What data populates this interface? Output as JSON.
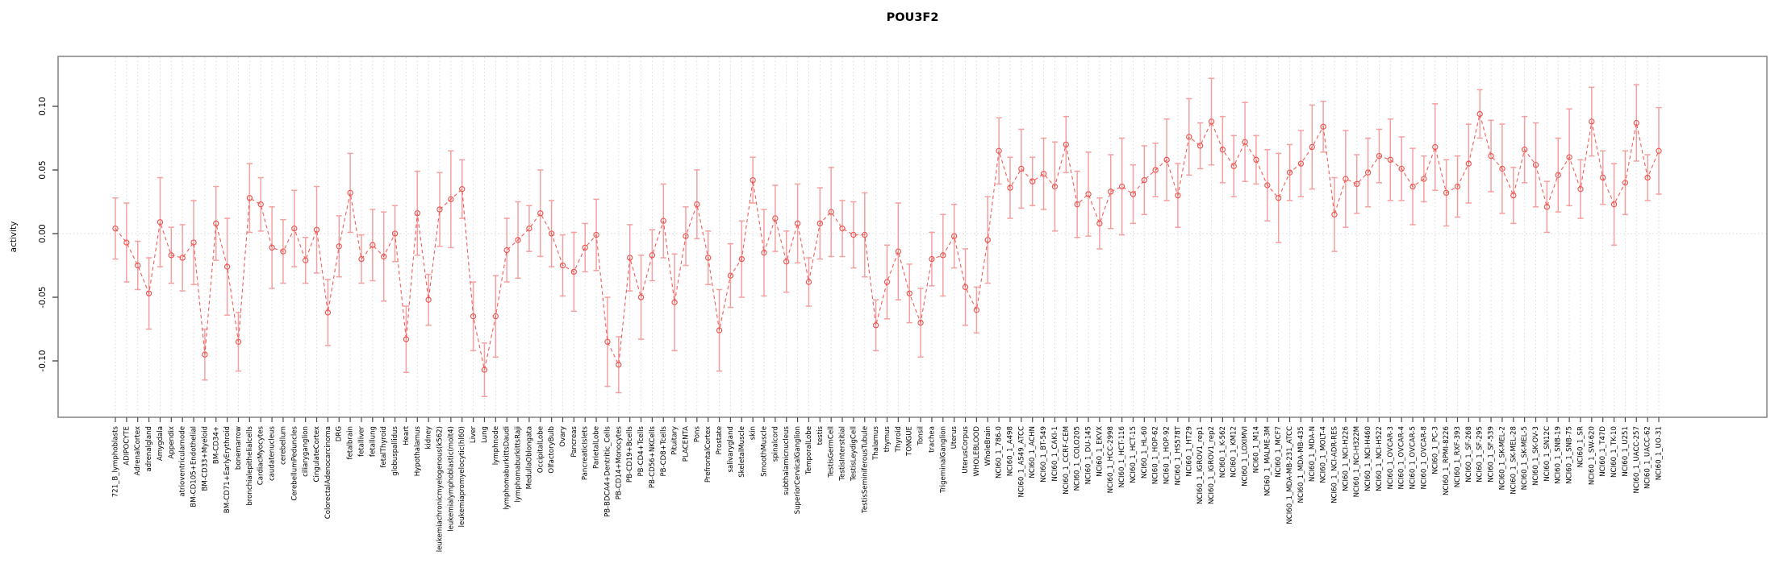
{
  "title": "POU3F2",
  "chart_data": {
    "type": "line",
    "title": "POU3F2",
    "xlabel": "",
    "ylabel": "activity",
    "ylim": [
      -0.144,
      0.139
    ],
    "yticks": [
      -0.1,
      -0.05,
      0.0,
      0.05,
      0.1
    ],
    "ytick_labels": [
      "-0.10",
      "-0.05",
      "0.00",
      "0.05",
      "0.10"
    ],
    "grid": "dotted vertical line per category, dotted horizontal line at y=0",
    "legend_position": "none",
    "marker": "open-circle",
    "error_bars": true,
    "colors": {
      "series": "#ee5450",
      "error_bar": "#f59b9b",
      "grid": "#d8d8d8",
      "frame": "#8a8a8a",
      "tick": "#4d4d4d",
      "text": "#000000"
    },
    "categories": [
      "721_B_lymphoblasts",
      "ADIPOCYTE",
      "AdrenalCortex",
      "adrenalgland",
      "Amygdala",
      "Appendix",
      "atrioventricularnode",
      "BM-CD105+Endothelial",
      "BM-CD33+Myeloid",
      "BM-CD34+",
      "BM-CD71+EarlyErythroid",
      "bonemarrow",
      "bronchialepithelialcells",
      "CardiacMyocytes",
      "caudatenucleus",
      "cerebellum",
      "CerebellumPeduncles",
      "ciliaryganglion",
      "CingulateCortex",
      "ColorectalAdenocarcinoma",
      "DRG",
      "fetalbrain",
      "fetalliver",
      "fetallung",
      "fetalThyroid",
      "globuspallidus",
      "Heart",
      "Hypothalamus",
      "kidney",
      "leukemiachronicmyelogenous(k562)",
      "leukemialymphoblastic(molt4)",
      "leukemiapromyelocytic(hl60)",
      "Liver",
      "Lung",
      "lymphnode",
      "lymphomaburkittsDaudi",
      "lymphomaburkittsRaji",
      "MedullaOblongata",
      "OccipitalLobe",
      "OlfactoryBulb",
      "Ovary",
      "Pancreas",
      "PancreaticIslets",
      "ParietalLobe",
      "PB-BDCA4+Dentritic_Cells",
      "PB-CD14+Monocytes",
      "PB-CD19+Bcells",
      "PB-CD4+Tcells",
      "PB-CD56+NKCells",
      "PB-CD8+Tcells",
      "Pituitary",
      "PLACENTA",
      "Pons",
      "PrefrontalCortex",
      "Prostate",
      "salivarygland",
      "SkeletalMuscle",
      "skin",
      "SmoothMuscle",
      "spinalcord",
      "subthalamicnucleus",
      "SuperiorCervicalGanglion",
      "TemporalLobe",
      "testis",
      "TestisGermCell",
      "TestisInterstitial",
      "TestisLeydigCell",
      "TestisSeminiferousTubule",
      "Thalamus",
      "thymus",
      "Thyroid",
      "TONGUE",
      "Tonsil",
      "trachea",
      "TrigeminalGanglion",
      "Uterus",
      "UterusCorpus",
      "WHOLEBLOOD",
      "WholeBrain",
      "NCI60_1_786-0",
      "NCI60_1_A498",
      "NCI60_1_A549_ATCC",
      "NCI60_1_ACHN",
      "NCI60_1_BT-549",
      "NCI60_1_CAKI-1",
      "NCI60_1_CCRF-CEM",
      "NCI60_1_COLO205",
      "NCI60_1_DU-145",
      "NCI60_1_EKVX",
      "NCI60_1_HCC-2998",
      "NCI60_1_HCT-116",
      "NCI60_1_HCT-15",
      "NCI60_1_HL-60",
      "NCI60_1_HOP-62",
      "NCI60_1_HOP-92",
      "NCI60_1_HS578T",
      "NCI60_1_HT29",
      "NCI60_1_IGROV1_rep1",
      "NCI60_1_IGROV1_rep2",
      "NCI60_1_K-562",
      "NCI60_1_KM12",
      "NCI60_1_LOXIMVI",
      "NCI60_1_M14",
      "NCI60_1_MALME-3M",
      "NCI60_1_MCF7",
      "NCI60_1_MDA-MB-231_ATCC",
      "NCI60_1_MDA-MB-435",
      "NCI60_1_MDA-N",
      "NCI60_1_MOLT-4",
      "NCI60_1_NCI-ADR-RES",
      "NCI60_1_NCI-H226",
      "NCI60_1_NCI-H322M",
      "NCI60_1_NCI-H460",
      "NCI60_1_NCI-H522",
      "NCI60_1_OVCAR-3",
      "NCI60_1_OVCAR-4",
      "NCI60_1_OVCAR-5",
      "NCI60_1_OVCAR-8",
      "NCI60_1_PC-3",
      "NCI60_1_RPMI-8226",
      "NCI60_1_RXF-393",
      "NCI60_1_SF-268",
      "NCI60_1_SF-295",
      "NCI60_1_SF-539",
      "NCI60_1_SK-MEL-2",
      "NCI60_1_SK-MEL-28",
      "NCI60_1_SK-MEL-5",
      "NCI60_1_SK-OV-3",
      "NCI60_1_SN12C",
      "NCI60_1_SNB-19",
      "NCI60_1_SNB-75",
      "NCI60_1_SR",
      "NCI60_1_SW-620",
      "NCI60_1_T47D",
      "NCI60_1_TK-10",
      "NCI60_1_U251",
      "NCI60_1_UACC-257",
      "NCI60_1_UACC-62",
      "NCI60_1_UO-31"
    ],
    "values": [
      0.004,
      -0.007,
      -0.025,
      -0.047,
      0.009,
      -0.017,
      -0.019,
      -0.007,
      -0.095,
      0.008,
      -0.026,
      -0.085,
      0.028,
      0.023,
      -0.011,
      -0.014,
      0.004,
      -0.021,
      0.003,
      -0.062,
      -0.01,
      0.032,
      -0.02,
      -0.009,
      -0.018,
      0.0,
      -0.083,
      0.016,
      -0.052,
      0.019,
      0.027,
      0.035,
      -0.065,
      -0.107,
      -0.065,
      -0.013,
      -0.005,
      0.004,
      0.016,
      0.0,
      -0.025,
      -0.03,
      -0.011,
      -0.001,
      -0.085,
      -0.103,
      -0.019,
      -0.05,
      -0.017,
      0.01,
      -0.054,
      -0.002,
      0.023,
      -0.019,
      -0.076,
      -0.033,
      -0.02,
      0.042,
      -0.015,
      0.012,
      -0.022,
      0.008,
      -0.038,
      0.008,
      0.017,
      0.004,
      -0.001,
      -0.001,
      -0.072,
      -0.038,
      -0.014,
      -0.047,
      -0.07,
      -0.02,
      -0.017,
      -0.002,
      -0.042,
      -0.06,
      -0.005,
      0.065,
      0.036,
      0.051,
      0.041,
      0.047,
      0.037,
      0.07,
      0.023,
      0.031,
      0.008,
      0.033,
      0.037,
      0.031,
      0.042,
      0.05,
      0.058,
      0.03,
      0.076,
      0.069,
      0.088,
      0.066,
      0.053,
      0.072,
      0.058,
      0.038,
      0.028,
      0.048,
      0.055,
      0.068,
      0.084,
      0.015,
      0.043,
      0.039,
      0.048,
      0.061,
      0.058,
      0.051,
      0.037,
      0.043,
      0.068,
      0.032,
      0.037,
      0.055,
      0.094,
      0.061,
      0.051,
      0.03,
      0.066,
      0.054,
      0.021,
      0.046,
      0.06,
      0.035,
      0.088,
      0.044,
      0.023,
      0.04,
      0.087,
      0.044,
      0.065
    ],
    "errors": [
      0.024,
      0.031,
      0.019,
      0.028,
      0.035,
      0.022,
      0.026,
      0.033,
      0.02,
      0.029,
      0.038,
      0.023,
      0.027,
      0.021,
      0.032,
      0.025,
      0.03,
      0.018,
      0.034,
      0.026,
      0.024,
      0.031,
      0.019,
      0.028,
      0.035,
      0.022,
      0.026,
      0.033,
      0.02,
      0.029,
      0.038,
      0.023,
      0.027,
      0.021,
      0.032,
      0.025,
      0.03,
      0.018,
      0.034,
      0.026,
      0.024,
      0.031,
      0.019,
      0.028,
      0.035,
      0.022,
      0.026,
      0.033,
      0.02,
      0.029,
      0.038,
      0.023,
      0.027,
      0.021,
      0.032,
      0.025,
      0.03,
      0.018,
      0.034,
      0.026,
      0.024,
      0.031,
      0.019,
      0.028,
      0.035,
      0.022,
      0.026,
      0.033,
      0.02,
      0.029,
      0.038,
      0.023,
      0.027,
      0.021,
      0.032,
      0.025,
      0.03,
      0.018,
      0.034,
      0.026,
      0.024,
      0.031,
      0.019,
      0.028,
      0.035,
      0.022,
      0.026,
      0.033,
      0.02,
      0.029,
      0.038,
      0.023,
      0.027,
      0.021,
      0.032,
      0.025,
      0.03,
      0.018,
      0.034,
      0.026,
      0.024,
      0.031,
      0.019,
      0.028,
      0.035,
      0.022,
      0.026,
      0.033,
      0.02,
      0.029,
      0.038,
      0.023,
      0.027,
      0.021,
      0.032,
      0.025,
      0.03,
      0.018,
      0.034,
      0.026,
      0.024,
      0.031,
      0.019,
      0.028,
      0.035,
      0.022,
      0.026,
      0.033,
      0.02,
      0.029,
      0.038,
      0.023,
      0.027,
      0.021,
      0.032,
      0.025,
      0.03,
      0.018,
      0.034
    ]
  }
}
